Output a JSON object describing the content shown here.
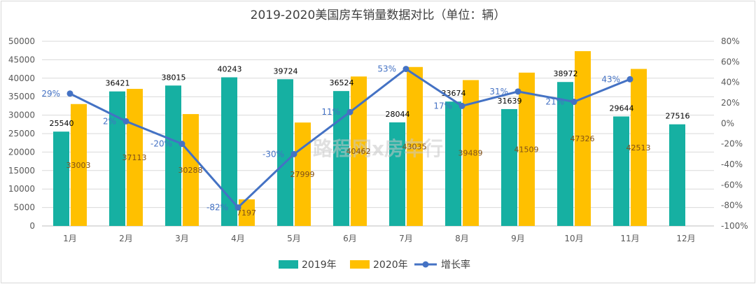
{
  "chart_data": {
    "type": "bar",
    "title": "2019-2020美国房车销量数据对比（单位：辆）",
    "categories": [
      "1月",
      "2月",
      "3月",
      "4月",
      "5月",
      "6月",
      "7月",
      "8月",
      "9月",
      "10月",
      "11月",
      "12月"
    ],
    "series": [
      {
        "name": "2019年",
        "type": "bar",
        "color": "#16b0a2",
        "values": [
          25540,
          36421,
          38015,
          40243,
          39724,
          36524,
          28044,
          33674,
          31639,
          38972,
          29644,
          27516
        ],
        "labels": [
          "25540",
          "36421",
          "38015",
          "40243",
          "39724",
          "36524",
          "28044",
          "33674",
          "31639",
          "38972",
          "29644",
          "27516"
        ]
      },
      {
        "name": "2020年",
        "type": "bar",
        "color": "#ffc000",
        "values": [
          33003,
          37113,
          30288,
          7197,
          27999,
          40462,
          43035,
          39489,
          41509,
          47326,
          42513,
          null
        ],
        "labels": [
          "33003",
          "37113",
          "30288",
          "7197",
          "27999",
          "40462",
          "43035",
          "39489",
          "41509",
          "47326",
          "42513",
          ""
        ]
      },
      {
        "name": "增长率",
        "type": "line",
        "axis": "right",
        "color": "#4472c4",
        "values": [
          29,
          2,
          -20,
          -82,
          -30,
          11,
          53,
          17,
          31,
          21,
          43,
          null
        ],
        "labels": [
          "29%",
          "2%",
          "-20%",
          "-82%",
          "-30%",
          "11%",
          "53%",
          "17%",
          "31%",
          "21%",
          "43%",
          ""
        ]
      }
    ],
    "y_left": {
      "min": 0,
      "max": 50000,
      "step": 5000,
      "ticks": [
        "0",
        "5000",
        "10000",
        "15000",
        "20000",
        "25000",
        "30000",
        "35000",
        "40000",
        "45000",
        "50000"
      ]
    },
    "y_right": {
      "min": -100,
      "max": 80,
      "step": 20,
      "ticks": [
        "-100%",
        "-80%",
        "-60%",
        "-40%",
        "-20%",
        "0%",
        "20%",
        "40%",
        "60%",
        "80%"
      ]
    },
    "legend_position": "bottom",
    "watermark": "路程网x房车行"
  }
}
